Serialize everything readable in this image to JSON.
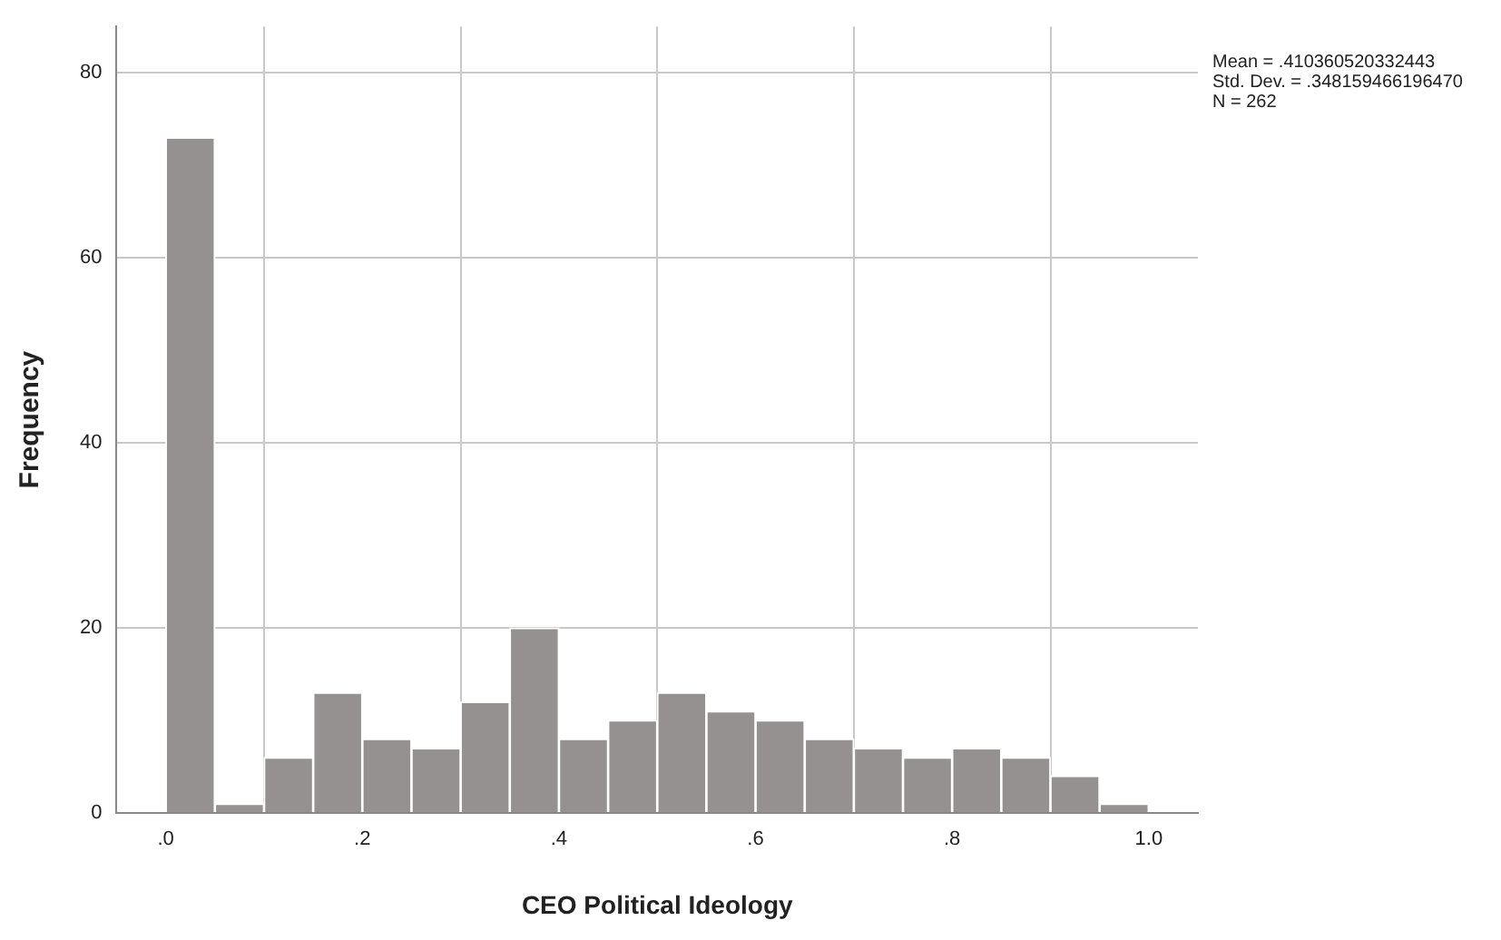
{
  "chart_data": {
    "type": "histogram",
    "xlabel": "CEO Political Ideology",
    "ylabel": "Frequency",
    "bins": [
      0,
      0.05,
      0.1,
      0.15,
      0.2,
      0.25,
      0.3,
      0.35,
      0.4,
      0.45,
      0.5,
      0.55,
      0.6,
      0.65,
      0.7,
      0.75,
      0.8,
      0.85,
      0.9,
      0.95,
      1.0
    ],
    "values": [
      73,
      1,
      6,
      13,
      8,
      7,
      12,
      20,
      8,
      10,
      13,
      11,
      10,
      8,
      7,
      6,
      7,
      6,
      4,
      1
    ],
    "color": "#949190",
    "xlim": [
      -0.05,
      1.05
    ],
    "xticks": [
      {
        "value": 0,
        "label": ".0"
      },
      {
        "value": 0.2,
        "label": ".2"
      },
      {
        "value": 0.4,
        "label": ".4"
      },
      {
        "value": 0.6,
        "label": ".6"
      },
      {
        "value": 0.8,
        "label": ".8"
      },
      {
        "value": 1.0,
        "label": "1.0"
      }
    ],
    "ylim": [
      0,
      85
    ],
    "yticks": [
      0,
      20,
      40,
      60,
      80
    ],
    "grid": true,
    "annotations": [
      "Mean = .410360520332443",
      "Std. Dev. = .348159466196470",
      "N = 262"
    ]
  }
}
